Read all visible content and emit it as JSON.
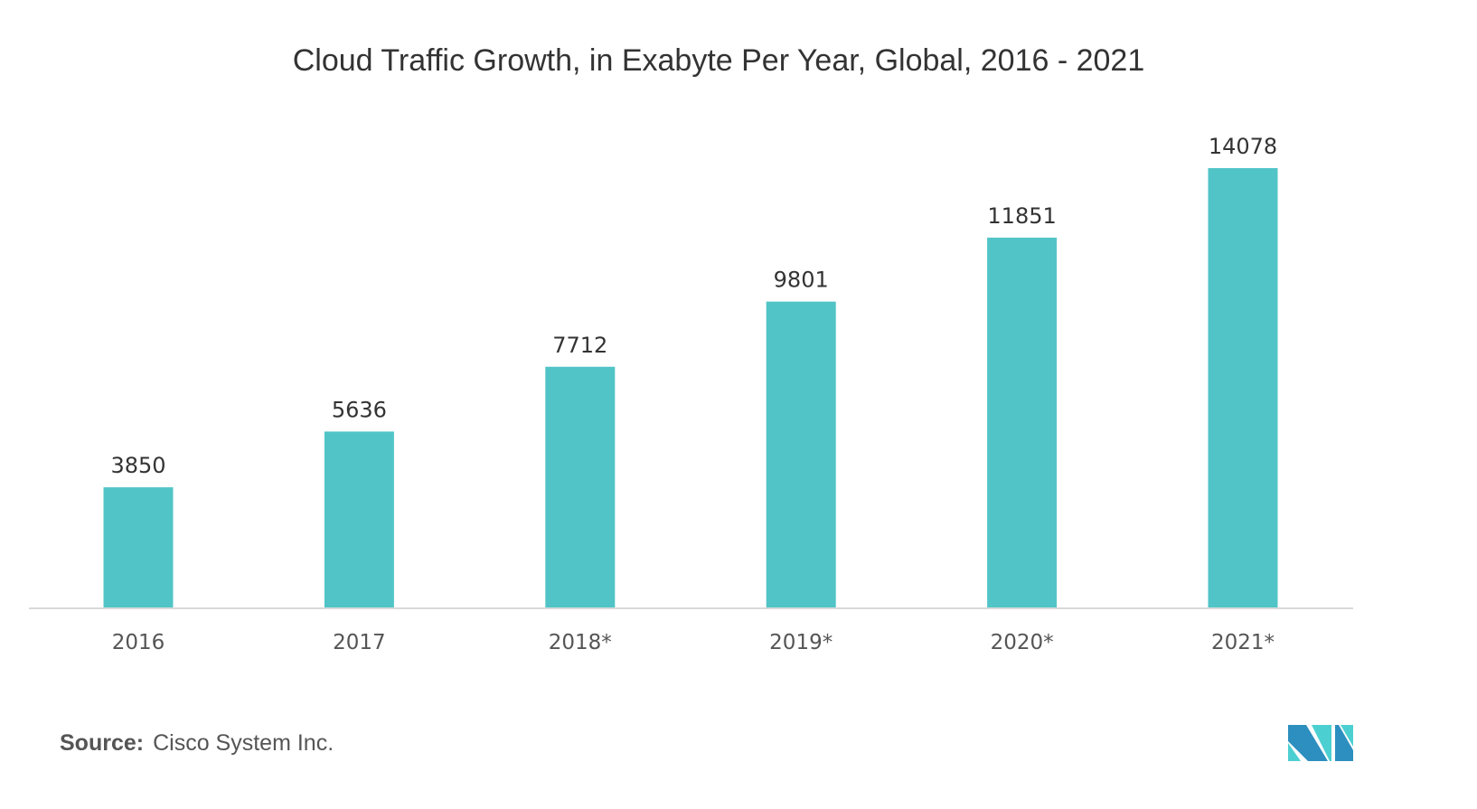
{
  "chart_data": {
    "type": "bar",
    "title": "Cloud Traffic Growth, in Exabyte Per Year, Global, 2016 - 2021",
    "categories": [
      "2016",
      "2017",
      "2018*",
      "2019*",
      "2020*",
      "2021*"
    ],
    "values": [
      3850,
      5636,
      7712,
      9801,
      11851,
      14078
    ],
    "xlabel": "",
    "ylabel": "",
    "ylim": [
      0,
      14078
    ],
    "grid": false,
    "bar_color": "#51c4c7"
  },
  "source": {
    "label": "Source:",
    "text": "Cisco System Inc."
  },
  "logo": {
    "colors": [
      "#2c8fbf",
      "#4ccfd1"
    ]
  }
}
